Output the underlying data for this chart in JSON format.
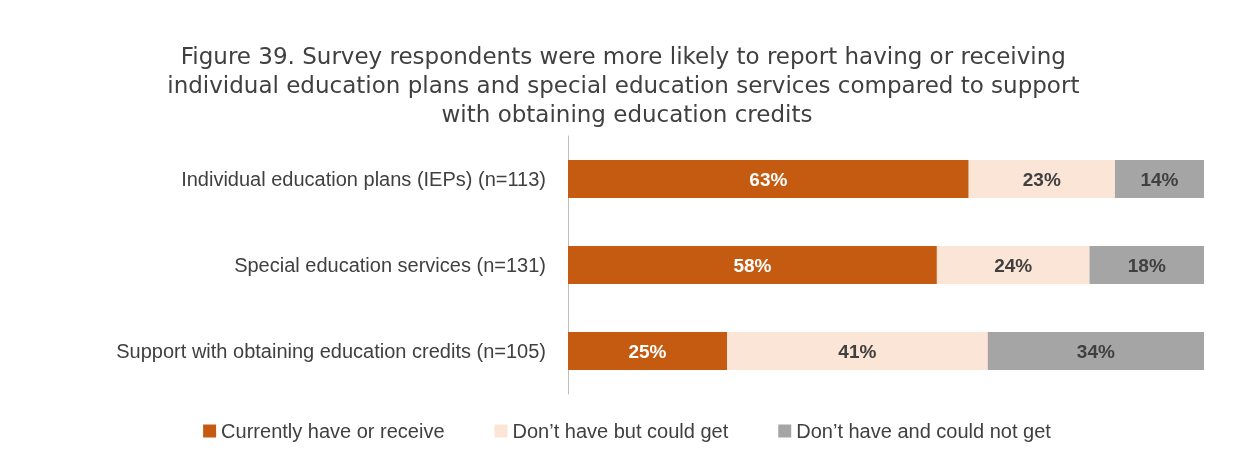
{
  "chart_data": {
    "type": "bar",
    "orientation": "horizontal",
    "stacked": true,
    "title": "Figure 39. Survey respondents were more likely to report having or receiving individual education plans and special education services compared to support with obtaining education credits",
    "categories": [
      "Individual education plans (IEPs) (n=113)",
      "Special education services (n=131)",
      "Support with obtaining education credits (n=105)"
    ],
    "series": [
      {
        "name": "Currently have or receive",
        "color": "#c55a11",
        "values": [
          63,
          58,
          25
        ],
        "value_labels": [
          "63%",
          "58%",
          "25%"
        ]
      },
      {
        "name": "Don’t have but could get",
        "color": "#fbe5d6",
        "values": [
          23,
          24,
          41
        ],
        "value_labels": [
          "23%",
          "24%",
          "41%"
        ]
      },
      {
        "name": "Don’t have and could not get",
        "color": "#a5a5a5",
        "values": [
          14,
          18,
          34
        ],
        "value_labels": [
          "14%",
          "18%",
          "34%"
        ]
      }
    ],
    "legend": "bottom"
  }
}
